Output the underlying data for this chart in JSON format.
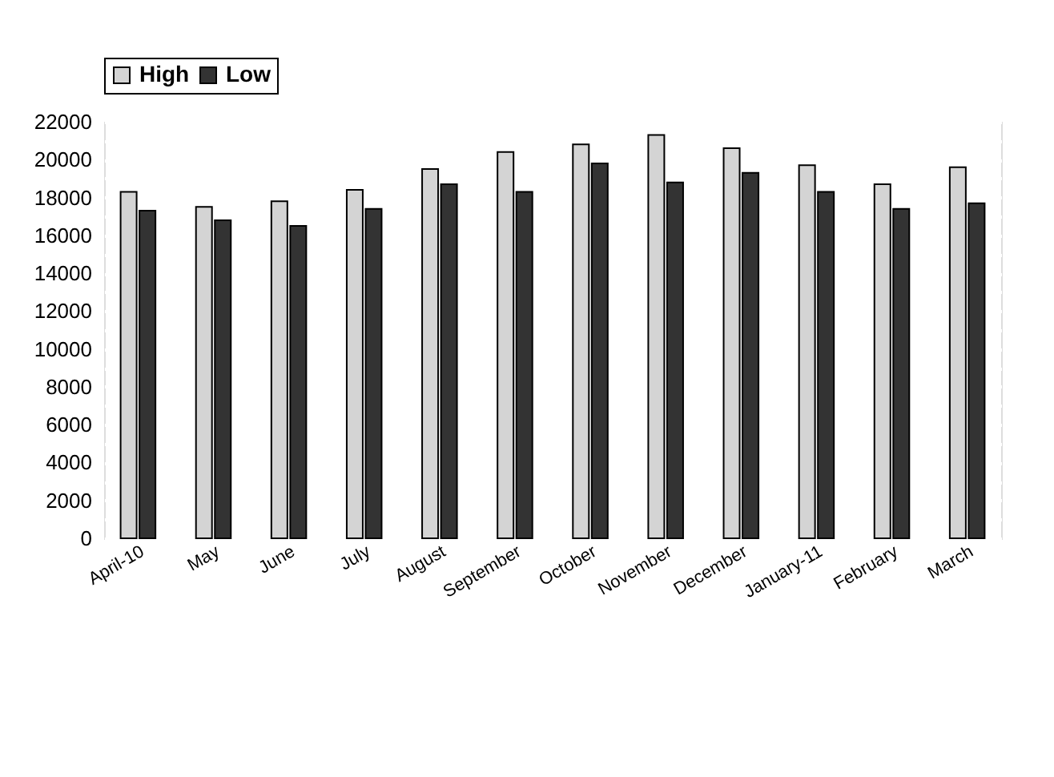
{
  "chart_data": {
    "type": "bar",
    "categories": [
      "April-10",
      "May",
      "June",
      "July",
      "August",
      "September",
      "October",
      "November",
      "December",
      "January-11",
      "February",
      "March"
    ],
    "series": [
      {
        "name": "High",
        "color": "#d4d4d4",
        "values": [
          18300,
          17500,
          17800,
          18400,
          19500,
          20400,
          20800,
          21300,
          20600,
          19700,
          18700,
          19600
        ]
      },
      {
        "name": "Low",
        "color": "#333333",
        "values": [
          17300,
          16800,
          16500,
          17400,
          18700,
          18300,
          19800,
          18800,
          19300,
          18300,
          17400,
          17700
        ]
      }
    ],
    "ylim": [
      0,
      22000
    ],
    "yticks": [
      0,
      {
        "value": 1000,
        "label": null
      },
      2000,
      {
        "value": 3000,
        "label": null
      },
      4000,
      {
        "value": 5000,
        "label": null
      },
      6000,
      {
        "value": 7000,
        "label": null
      },
      8000,
      {
        "value": 9000,
        "label": null
      },
      10000,
      {
        "value": 11000,
        "label": null
      },
      12000,
      {
        "value": 13000,
        "label": null
      },
      14000,
      {
        "value": 15000,
        "label": null
      },
      16000,
      {
        "value": 17000,
        "label": null
      },
      18000,
      {
        "value": 19000,
        "label": null
      },
      20000,
      {
        "value": 21000,
        "label": null
      },
      22000
    ],
    "grid": "y",
    "legend": "top"
  }
}
